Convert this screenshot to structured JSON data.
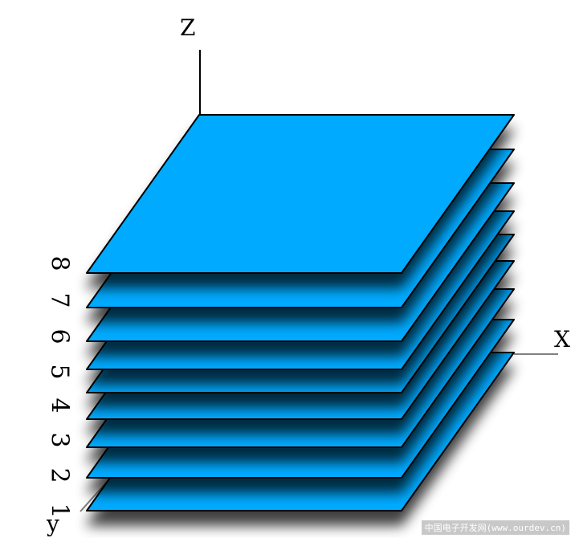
{
  "axes": {
    "z_label": "Z",
    "x_label": "X",
    "y_label": "y"
  },
  "layers": [
    "1",
    "2",
    "3",
    "4",
    "5",
    "6",
    "7",
    "8"
  ],
  "colors": {
    "plate_fill": "#00aaff",
    "plate_stroke": "#000000",
    "axis_line": "#808080"
  },
  "watermark": "中国电子开发网(www.ourdev.cn)"
}
